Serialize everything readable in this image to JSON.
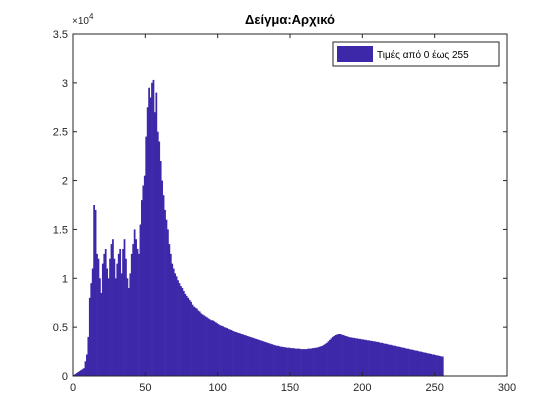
{
  "window": {
    "title": "Δείγμα:Αρχικό"
  },
  "chart_data": {
    "type": "bar",
    "title": "Δείγμα:Αρχικό",
    "xlabel": "",
    "ylabel": "",
    "xlim": [
      0,
      300
    ],
    "ylim": [
      0,
      35000
    ],
    "x_ticks": [
      0,
      50,
      100,
      150,
      200,
      250,
      300
    ],
    "y_ticks": [
      0,
      5000,
      10000,
      15000,
      20000,
      25000,
      30000,
      35000
    ],
    "y_tick_labels": [
      "0",
      "0.5",
      "1",
      "1.5",
      "2",
      "2.5",
      "3",
      "3.5"
    ],
    "y_exponent": {
      "base": "×10",
      "power": "4"
    },
    "legend": {
      "position": "top-right",
      "entries": [
        "Τιμές από 0 έως 255"
      ]
    },
    "grid": false,
    "bar_color": "#3c28a8",
    "series": [
      {
        "name": "Τιμές από 0 έως 255",
        "x_start": 0,
        "values": [
          100,
          200,
          300,
          400,
          500,
          600,
          700,
          800,
          1500,
          2200,
          4000,
          8000,
          9500,
          11000,
          17500,
          17000,
          12500,
          12000,
          10000,
          8500,
          11500,
          12500,
          13000,
          11000,
          10000,
          12000,
          13500,
          14000,
          12000,
          10000,
          11500,
          12500,
          13000,
          10500,
          13000,
          14000,
          12000,
          10000,
          9000,
          10500,
          12500,
          13500,
          15000,
          14000,
          13000,
          12500,
          15500,
          18000,
          19500,
          20500,
          24500,
          27500,
          29500,
          28500,
          30000,
          30300,
          27000,
          29000,
          25000,
          24000,
          22000,
          20000,
          18500,
          17000,
          16000,
          15000,
          13500,
          12500,
          11500,
          11000,
          10500,
          10200,
          9800,
          9500,
          9200,
          9000,
          8700,
          8400,
          8200,
          8000,
          7800,
          7600,
          7300,
          7100,
          7000,
          6900,
          6700,
          6600,
          6400,
          6300,
          6200,
          6100,
          6000,
          5900,
          5800,
          5700,
          5700,
          5600,
          5500,
          5400,
          5300,
          5200,
          5150,
          5100,
          5000,
          4950,
          4900,
          4800,
          4750,
          4700,
          4600,
          4550,
          4500,
          4450,
          4400,
          4350,
          4300,
          4250,
          4200,
          4150,
          4100,
          4050,
          4000,
          3950,
          3900,
          3850,
          3800,
          3750,
          3700,
          3650,
          3600,
          3550,
          3500,
          3450,
          3400,
          3350,
          3300,
          3250,
          3200,
          3150,
          3100,
          3100,
          3050,
          3000,
          3000,
          2950,
          2950,
          2900,
          2900,
          2900,
          2850,
          2850,
          2850,
          2800,
          2800,
          2800,
          2800,
          2750,
          2750,
          2750,
          2750,
          2750,
          2800,
          2800,
          2800,
          2850,
          2850,
          2900,
          2900,
          2950,
          3000,
          3050,
          3100,
          3200,
          3300,
          3400,
          3550,
          3700,
          3850,
          4000,
          4100,
          4200,
          4250,
          4300,
          4300,
          4250,
          4200,
          4150,
          4100,
          4050,
          4000,
          3950,
          3950,
          3900,
          3900,
          3850,
          3850,
          3800,
          3800,
          3750,
          3750,
          3700,
          3700,
          3650,
          3650,
          3600,
          3600,
          3550,
          3550,
          3500,
          3500,
          3450,
          3400,
          3400,
          3350,
          3300,
          3300,
          3250,
          3200,
          3200,
          3150,
          3100,
          3100,
          3050,
          3000,
          3000,
          2950,
          2900,
          2900,
          2850,
          2800,
          2800,
          2750,
          2700,
          2700,
          2650,
          2600,
          2600,
          2550,
          2500,
          2500,
          2450,
          2400,
          2400,
          2350,
          2300,
          2300,
          2250,
          2200,
          2200,
          2150,
          2100,
          2100,
          2050,
          2000,
          2000
        ]
      }
    ]
  }
}
